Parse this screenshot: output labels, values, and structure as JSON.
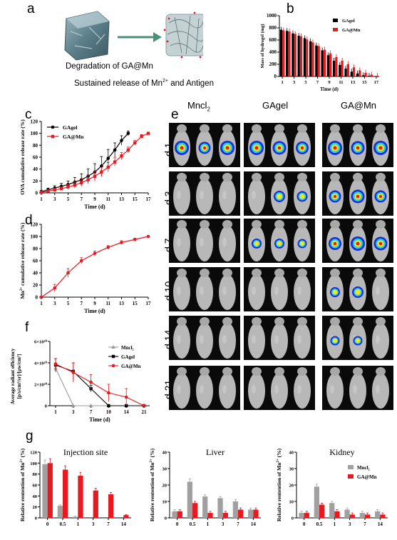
{
  "panels": {
    "a": {
      "label": "a",
      "caption1": "Degradation of GA@Mn",
      "caption2": "Sustained release of Mn",
      "caption2_sup": "2+",
      "caption2_tail": " and Antigen"
    },
    "b": {
      "label": "b"
    },
    "c": {
      "label": "c"
    },
    "d": {
      "label": "d"
    },
    "e": {
      "label": "e",
      "columns": [
        "Mncl",
        "GAgel",
        "GA@Mn"
      ],
      "col1_sub": "2",
      "rows": [
        "d 1",
        "d 3",
        "d 7",
        "d 10",
        "d 14",
        "d 21"
      ]
    },
    "f": {
      "label": "f"
    },
    "g": {
      "label": "g"
    }
  },
  "colors": {
    "gagel": "#000000",
    "gamn": "#e8191f",
    "mncl": "#999999",
    "mncl_bar": "#a0a0a0"
  },
  "chart_data": [
    {
      "id": "b",
      "type": "bar",
      "ylabel": "Mass of hydrogel (mg)",
      "xlabel": "Time (d)",
      "ylim": [
        0,
        1000
      ],
      "yticks": [
        0,
        200,
        400,
        600,
        800,
        1000
      ],
      "xticks": [
        "1",
        "3",
        "5",
        "7",
        "9",
        "11",
        "13",
        "15",
        "17"
      ],
      "categories": [
        "1",
        "2",
        "3",
        "4",
        "5",
        "6",
        "7",
        "8",
        "9",
        "10",
        "11",
        "12",
        "13",
        "14",
        "15",
        "16",
        "17"
      ],
      "series": [
        {
          "name": "GAgel",
          "color": "#000000",
          "values": [
            770,
            750,
            710,
            670,
            630,
            580,
            510,
            430,
            350,
            260,
            190,
            130,
            80,
            50,
            20,
            10,
            0
          ]
        },
        {
          "name": "GA@Mn",
          "color": "#e8191f",
          "values": [
            760,
            740,
            700,
            660,
            610,
            560,
            500,
            440,
            380,
            320,
            260,
            200,
            150,
            100,
            60,
            30,
            10
          ]
        }
      ],
      "legend": "top-right"
    },
    {
      "id": "c",
      "type": "line",
      "ylabel": "OVA cumulative release rate (%)",
      "xlabel": "Time (d)",
      "ylim": [
        0,
        120
      ],
      "yticks": [
        0,
        20,
        40,
        60,
        80,
        100,
        120
      ],
      "xticks": [
        1,
        3,
        5,
        7,
        9,
        11,
        13,
        15,
        17
      ],
      "series": [
        {
          "name": "GAgel",
          "color": "#000000",
          "marker": "circle",
          "x": [
            1,
            2,
            3,
            4,
            5,
            6,
            7,
            8,
            9,
            10,
            11,
            12,
            13,
            14
          ],
          "y": [
            2,
            5,
            8,
            11,
            14,
            18,
            22,
            28,
            35,
            45,
            58,
            72,
            88,
            100
          ],
          "err": [
            2,
            3,
            4,
            5,
            6,
            8,
            10,
            12,
            14,
            16,
            15,
            12,
            8,
            4
          ]
        },
        {
          "name": "GA@Mn",
          "color": "#e8191f",
          "marker": "square",
          "x": [
            1,
            2,
            3,
            4,
            5,
            6,
            7,
            8,
            9,
            10,
            11,
            12,
            13,
            14,
            15,
            16,
            17
          ],
          "y": [
            1,
            3,
            5,
            7,
            10,
            13,
            17,
            22,
            28,
            35,
            43,
            52,
            62,
            72,
            84,
            95,
            100
          ],
          "err": [
            1,
            2,
            3,
            3,
            4,
            5,
            6,
            7,
            8,
            8,
            8,
            7,
            6,
            5,
            4,
            3,
            2
          ]
        }
      ],
      "legend": "top-left"
    },
    {
      "id": "d",
      "type": "line",
      "ylabel": "Mn cumulative release rate (%)",
      "ylabel_sup": "2+",
      "xlabel": "Time (d)",
      "ylim": [
        0,
        120
      ],
      "yticks": [
        0,
        20,
        40,
        60,
        80,
        100,
        120
      ],
      "xticks": [
        1,
        3,
        5,
        7,
        9,
        11,
        13,
        15,
        17
      ],
      "series": [
        {
          "name": "",
          "color": "#e8191f",
          "marker": "circle",
          "x": [
            1,
            3,
            5,
            7,
            9,
            11,
            13,
            15,
            17
          ],
          "y": [
            0,
            15,
            40,
            60,
            72,
            82,
            90,
            95,
            100
          ],
          "err": [
            0,
            6,
            7,
            5,
            4,
            3,
            3,
            2,
            1
          ]
        }
      ]
    },
    {
      "id": "f",
      "type": "line",
      "ylabel": "Average radiant efficiency",
      "ylabel2": "[p/s/cm²/sr]/[μw/cm²]",
      "xlabel": "Time (d)",
      "ylim": [
        0,
        6
      ],
      "yticks": [
        "0",
        "2×10¹⁰",
        "4×10¹⁰",
        "6×10¹⁰"
      ],
      "xticks": [
        "1",
        "3",
        "7",
        "10",
        "14",
        "21"
      ],
      "series": [
        {
          "name": "Mncl₂",
          "color": "#999999",
          "marker": "triangle",
          "y": [
            3.5,
            0,
            0,
            0,
            0,
            0
          ],
          "err": [
            0.4,
            0,
            0,
            0,
            0,
            0
          ]
        },
        {
          "name": "GAgel",
          "color": "#000000",
          "marker": "square",
          "y": [
            3.8,
            3.2,
            1.6,
            0,
            0,
            0
          ],
          "err": [
            0.6,
            0.8,
            0.3,
            0,
            0,
            0
          ]
        },
        {
          "name": "GA@Mn",
          "color": "#e8191f",
          "marker": "circle",
          "y": [
            3.9,
            3.1,
            2.2,
            1.2,
            0.8,
            0
          ],
          "err": [
            0.5,
            0.9,
            0.7,
            0.8,
            0.8,
            0
          ]
        }
      ],
      "legend": "top-right"
    },
    {
      "id": "g1",
      "type": "bar",
      "title": "Injection site",
      "ylabel": "Relative rentention of Mn",
      "ylabel_sup": "2+",
      "ylabel_tail": " (%)",
      "ylim": [
        0,
        120
      ],
      "yticks": [
        0,
        20,
        40,
        60,
        80,
        100,
        120
      ],
      "categories": [
        "0",
        "0.5",
        "1",
        "3",
        "7",
        "14"
      ],
      "series": [
        {
          "name": "Mncl₂",
          "color": "#a0a0a0",
          "values": [
            98,
            22,
            2,
            0,
            0,
            0
          ]
        },
        {
          "name": "GA@Mn",
          "color": "#e8191f",
          "values": [
            100,
            88,
            77,
            50,
            43,
            5
          ]
        }
      ]
    },
    {
      "id": "g2",
      "type": "bar",
      "title": "Liver",
      "ylabel": "Relative rentention of Mn",
      "ylabel_sup": "2+",
      "ylabel_tail": " (%)",
      "ylim": [
        0,
        40
      ],
      "yticks": [
        0,
        10,
        20,
        30,
        40
      ],
      "categories": [
        "0",
        "0.5",
        "1",
        "3",
        "7",
        "14"
      ],
      "series": [
        {
          "name": "Mncl₂",
          "color": "#a0a0a0",
          "values": [
            4,
            22,
            13,
            12,
            10,
            5
          ]
        },
        {
          "name": "GA@Mn",
          "color": "#e8191f",
          "values": [
            4,
            9,
            3,
            3,
            5,
            5
          ]
        }
      ]
    },
    {
      "id": "g3",
      "type": "bar",
      "title": "Kidney",
      "ylabel": "Relative rentention of Mn",
      "ylabel_sup": "2+",
      "ylabel_tail": " (%)",
      "ylim": [
        0,
        40
      ],
      "yticks": [
        0,
        10,
        20,
        30,
        40
      ],
      "categories": [
        "0",
        "0.5",
        "1",
        "3",
        "7",
        "14"
      ],
      "series": [
        {
          "name": "Mncl₂",
          "color": "#a0a0a0",
          "values": [
            3,
            19,
            9,
            5,
            3,
            4
          ]
        },
        {
          "name": "GA@Mn",
          "color": "#e8191f",
          "values": [
            3,
            8,
            4,
            2,
            2,
            2
          ]
        }
      ],
      "legend": "top-right"
    }
  ]
}
